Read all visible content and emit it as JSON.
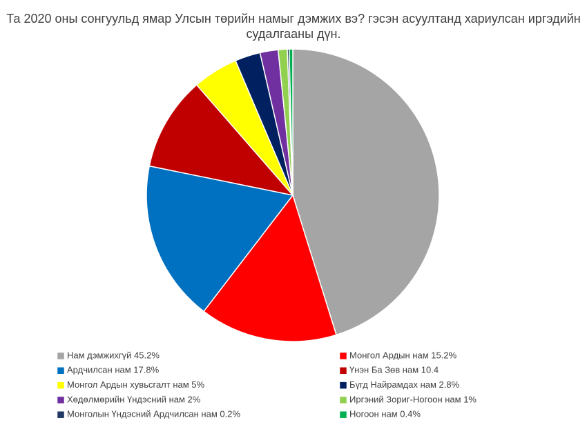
{
  "chart_data": {
    "type": "pie",
    "title": [
      "Та 2020 оны сонгуульд ямар Улсын төрийн намыг дэмжих вэ? гэсэн асуултанд хариулсан иргэдийн",
      "судалгааны дүн."
    ],
    "categories": [
      "Нам дэмжихгүй 45.2%",
      "Монгол Ардын нам 15.2%",
      "Ардчилсан нам 17.8%",
      "Үнэн Ба Зөв нам 10.4",
      "Монгол Ардын хувьсгалт нам 5%",
      "Бүгд Найрамдах нам 2.8%",
      "Хөдөлмөрийн Үндэсний нам 2%",
      "Иргэний Зориг-Ногоон нам 1%",
      "Монголын Үндэсний Ардчилсан нам 0.2%",
      "Ногоон нам 0.4%"
    ],
    "values": [
      45.2,
      15.2,
      17.8,
      10.4,
      5,
      2.8,
      2,
      1,
      0.2,
      0.4
    ],
    "colors": [
      "#a5a5a5",
      "#ff0000",
      "#0070c0",
      "#c00000",
      "#ffff00",
      "#002060",
      "#7030a0",
      "#92d050",
      "#1f3864",
      "#00b050"
    ]
  }
}
